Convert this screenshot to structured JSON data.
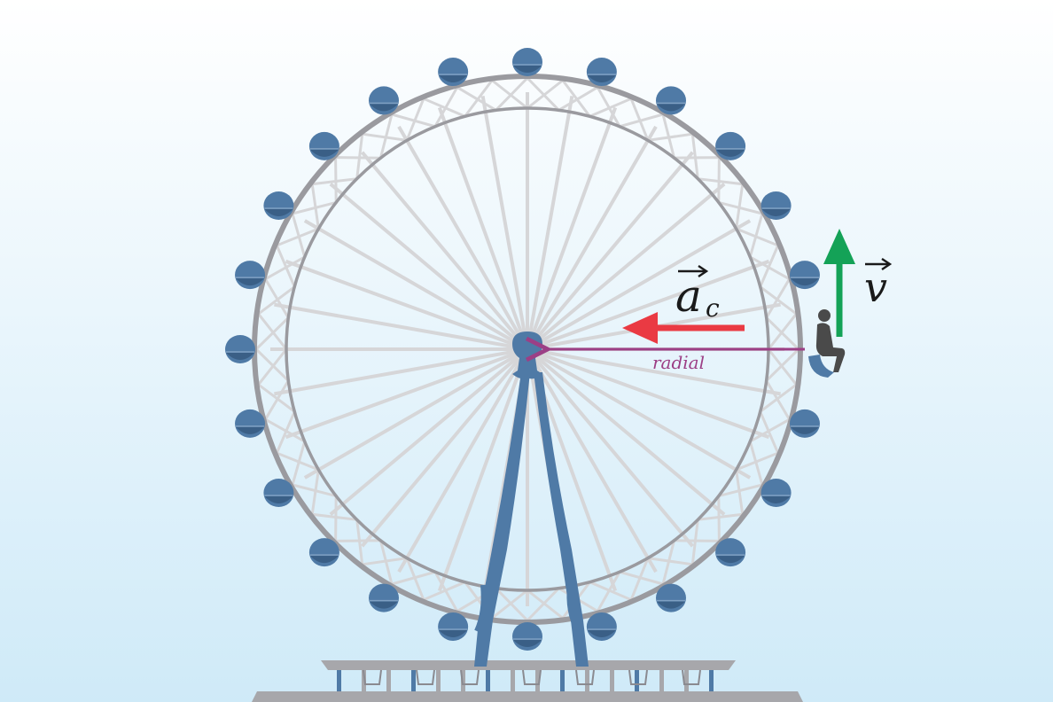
{
  "colors": {
    "sky_top": "#ffffff",
    "sky_bottom": "#cfeaf8",
    "rim": "#9a9a9f",
    "spoke": "#d6d6d8",
    "cabin": "#4f7aa6",
    "cabin_shade": "#3a5f86",
    "tower": "#4f7aa6",
    "platform": "#a7a7ab",
    "velocity_arrow": "#14a257",
    "acceleration_arrow": "#ea3a43",
    "radial_line": "#9c3f86",
    "rider": "#4a4a4a"
  },
  "labels": {
    "acceleration": {
      "base": "a",
      "subscript": "c"
    },
    "velocity": {
      "base": "v"
    },
    "radial": "radial"
  },
  "wheel": {
    "spoke_count": 36,
    "cabin_count": 24
  }
}
